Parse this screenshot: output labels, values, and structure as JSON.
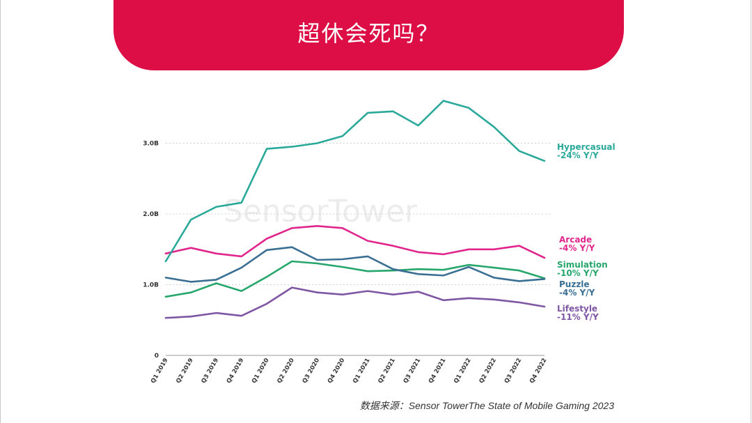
{
  "header": {
    "title": "超休会死吗？"
  },
  "source_note": "数据来源：Sensor TowerThe State of Mobile Gaming 2023",
  "chart_data": {
    "type": "line",
    "title": "",
    "xlabel": "",
    "ylabel": "",
    "watermark": "SensorTower",
    "categories": [
      "Q1 2019",
      "Q2 2019",
      "Q3 2019",
      "Q4 2019",
      "Q1 2020",
      "Q2 2020",
      "Q3 2020",
      "Q4 2020",
      "Q1 2021",
      "Q2 2021",
      "Q3 2021",
      "Q4 2021",
      "Q1 2022",
      "Q2 2022",
      "Q3 2022",
      "Q4 2022"
    ],
    "ylim": [
      0,
      3.7
    ],
    "yticks": [
      0,
      1.0,
      2.0,
      3.0
    ],
    "ytick_labels": [
      "0",
      "1.0B",
      "2.0B",
      "3.0B"
    ],
    "grid": true,
    "series": [
      {
        "name": "Hypercasual",
        "change": "-24% Y/Y",
        "color": "#2aa99a",
        "values": [
          1.33,
          1.92,
          2.1,
          2.16,
          2.92,
          2.95,
          3.0,
          3.1,
          3.43,
          3.45,
          3.25,
          3.6,
          3.5,
          3.23,
          2.89,
          2.75
        ]
      },
      {
        "name": "Arcade",
        "change": "-4% Y/Y",
        "color": "#e0268c",
        "values": [
          1.44,
          1.52,
          1.44,
          1.4,
          1.65,
          1.8,
          1.83,
          1.8,
          1.62,
          1.55,
          1.46,
          1.43,
          1.5,
          1.5,
          1.55,
          1.38
        ]
      },
      {
        "name": "Simulation",
        "change": "-10% Y/Y",
        "color": "#26a66b",
        "values": [
          0.83,
          0.89,
          1.02,
          0.91,
          1.11,
          1.33,
          1.3,
          1.25,
          1.19,
          1.2,
          1.22,
          1.21,
          1.28,
          1.24,
          1.2,
          1.09
        ]
      },
      {
        "name": "Puzzle",
        "change": "-4% Y/Y",
        "color": "#3a6f93",
        "values": [
          1.1,
          1.04,
          1.07,
          1.24,
          1.49,
          1.53,
          1.35,
          1.36,
          1.4,
          1.22,
          1.15,
          1.13,
          1.25,
          1.1,
          1.05,
          1.08
        ]
      },
      {
        "name": "Lifestyle",
        "change": "-11% Y/Y",
        "color": "#7e56a3",
        "values": [
          0.53,
          0.55,
          0.6,
          0.56,
          0.73,
          0.96,
          0.89,
          0.86,
          0.91,
          0.86,
          0.9,
          0.78,
          0.81,
          0.79,
          0.75,
          0.69
        ]
      }
    ]
  }
}
